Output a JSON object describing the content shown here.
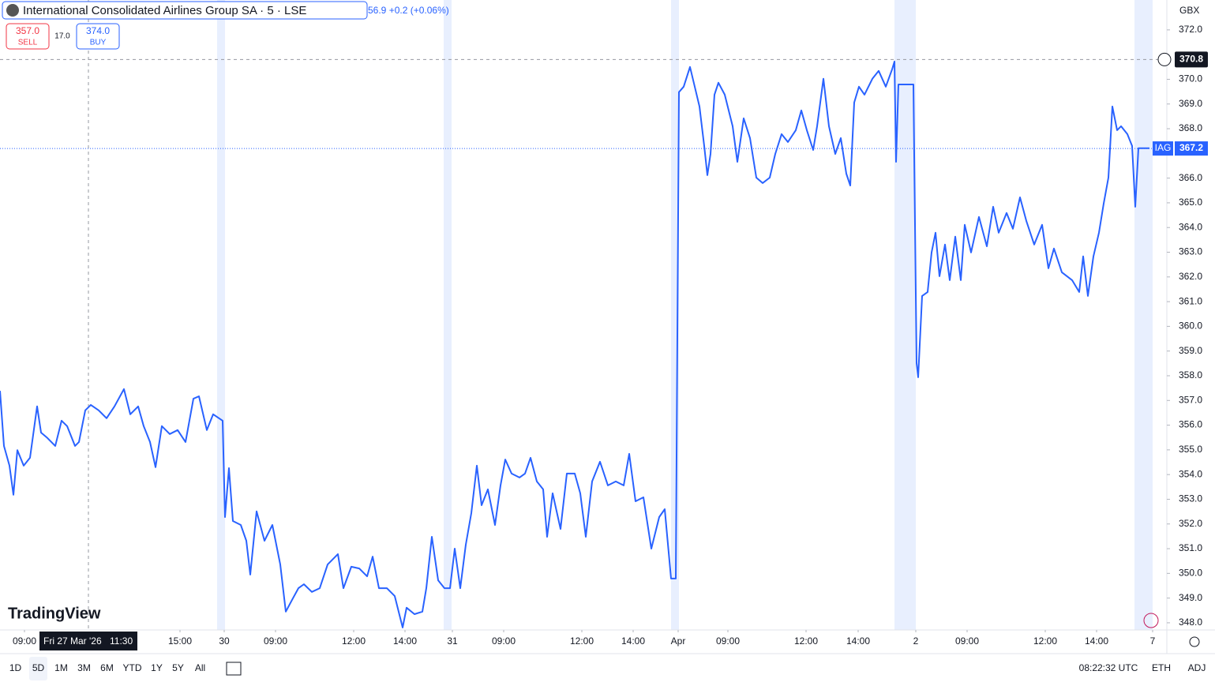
{
  "header": {
    "title": "International Consolidated Airlines Group SA · 5 · LSE",
    "quote": "56.9 +0.2 (+0.06%)",
    "sell_price": "357.0",
    "sell_label": "SELL",
    "spread": "17.0",
    "buy_price": "374.0",
    "buy_label": "BUY"
  },
  "currency": "GBX",
  "logo": "TradingView",
  "toolbar": {
    "ranges": [
      "1D",
      "5D",
      "1M",
      "3M",
      "6M",
      "YTD",
      "1Y",
      "5Y",
      "All"
    ],
    "active_range_index": 1,
    "clock": "08:22:32 UTC",
    "buttons": [
      "ETH",
      "ADJ"
    ]
  },
  "chart_data": {
    "type": "line",
    "x": [
      0,
      5,
      12,
      17,
      22,
      30,
      38,
      47,
      52,
      60,
      70,
      78,
      85,
      95,
      100,
      108,
      115,
      125,
      135,
      145,
      157,
      165,
      175,
      182,
      190,
      197,
      205,
      215,
      225,
      235,
      245,
      252,
      262,
      270,
      282,
      285,
      290,
      295,
      305,
      312,
      317,
      325,
      335,
      345,
      355,
      362,
      370,
      378,
      385,
      395,
      405,
      415,
      428,
      435,
      445,
      455,
      465,
      472,
      480,
      490,
      500,
      510,
      515,
      525,
      535,
      540,
      547,
      555,
      563,
      570,
      576,
      583,
      590,
      597,
      604,
      610,
      618,
      627,
      634,
      640,
      648,
      658,
      665,
      672,
      680,
      688,
      693,
      700,
      710,
      718,
      728,
      735,
      742,
      750,
      760,
      770,
      780,
      790,
      797,
      805,
      815,
      825,
      835,
      842,
      850,
      856,
      860,
      866,
      874,
      880,
      886,
      892,
      896,
      900,
      905,
      910,
      918,
      928,
      934,
      942,
      950,
      958,
      966,
      975,
      982,
      990,
      998,
      1008,
      1015,
      1022,
      1030,
      1035,
      1043,
      1050,
      1058,
      1065,
      1072,
      1077,
      1082,
      1088,
      1095,
      1105,
      1113,
      1122,
      1130,
      1133,
      1135,
      1138,
      1157,
      1161,
      1163,
      1168,
      1175,
      1180,
      1185,
      1190,
      1197,
      1203,
      1210,
      1217,
      1222,
      1230,
      1240,
      1250,
      1258,
      1265,
      1275,
      1283,
      1292,
      1300,
      1310,
      1320,
      1328,
      1335,
      1345,
      1358,
      1367,
      1372,
      1378,
      1385,
      1392,
      1398,
      1404,
      1409,
      1415,
      1420,
      1428,
      1434,
      1438,
      1442,
      1456
    ],
    "series": [
      {
        "name": "IAG",
        "color": "#2962ff",
        "values": [
          357.39,
          355.16,
          354.36,
          353.18,
          354.99,
          354.36,
          354.68,
          356.76,
          355.7,
          355.48,
          355.16,
          356.18,
          355.96,
          355.16,
          355.32,
          356.6,
          356.82,
          356.6,
          356.28,
          356.76,
          357.46,
          356.44,
          356.76,
          355.96,
          355.32,
          354.3,
          355.96,
          355.64,
          355.8,
          355.32,
          357.07,
          357.17,
          355.8,
          356.44,
          356.18,
          352.28,
          354.26,
          352.12,
          351.96,
          351.32,
          349.95,
          352.51,
          351.32,
          351.96,
          350.36,
          348.45,
          348.93,
          349.4,
          349.56,
          349.25,
          349.4,
          350.36,
          350.78,
          349.4,
          350.27,
          350.2,
          349.88,
          350.68,
          349.4,
          349.4,
          349.08,
          347.81,
          348.61,
          348.35,
          348.45,
          349.4,
          351.48,
          349.72,
          349.4,
          349.4,
          351.0,
          349.4,
          351.16,
          352.44,
          354.36,
          352.76,
          353.4,
          351.96,
          353.56,
          354.61,
          354.04,
          353.88,
          354.04,
          354.68,
          353.72,
          353.4,
          351.48,
          353.24,
          351.8,
          354.04,
          354.04,
          353.24,
          351.48,
          353.72,
          354.52,
          353.56,
          353.72,
          353.56,
          354.84,
          352.92,
          353.08,
          351.0,
          352.28,
          352.6,
          349.79,
          349.79,
          369.48,
          369.7,
          370.5,
          369.7,
          368.9,
          367.3,
          366.12,
          366.98,
          369.38,
          369.86,
          369.38,
          368.1,
          366.66,
          368.42,
          367.62,
          366.02,
          365.8,
          366.02,
          366.98,
          367.78,
          367.46,
          367.94,
          368.74,
          367.94,
          367.14,
          368.1,
          370.02,
          368.1,
          366.98,
          367.62,
          366.18,
          365.7,
          369.06,
          369.7,
          369.38,
          370.02,
          370.34,
          369.7,
          370.4,
          370.72,
          366.66,
          369.79,
          369.79,
          358.51,
          357.94,
          361.23,
          361.39,
          362.99,
          363.79,
          362.03,
          363.31,
          361.87,
          363.63,
          361.87,
          364.11,
          362.99,
          364.43,
          363.24,
          364.84,
          363.79,
          364.59,
          363.95,
          365.22,
          364.27,
          363.31,
          364.11,
          362.35,
          363.15,
          362.19,
          361.87,
          361.39,
          362.83,
          361.23,
          362.83,
          363.79,
          364.97,
          366.02,
          368.9,
          367.94,
          368.1,
          367.78,
          367.3,
          364.84,
          367.21,
          367.21
        ]
      }
    ],
    "xlim": [
      0,
      1478
    ],
    "ylim": [
      347.71,
      373.21
    ],
    "yticks": [
      {
        "value": 348,
        "label": "348.0"
      },
      {
        "value": 349,
        "label": "349.0"
      },
      {
        "value": 350,
        "label": "350.0"
      },
      {
        "value": 351,
        "label": "351.0"
      },
      {
        "value": 352,
        "label": "352.0"
      },
      {
        "value": 353,
        "label": "353.0"
      },
      {
        "value": 354,
        "label": "354.0"
      },
      {
        "value": 355,
        "label": "355.0"
      },
      {
        "value": 356,
        "label": "356.0"
      },
      {
        "value": 357,
        "label": "357.0"
      },
      {
        "value": 358,
        "label": "358.0"
      },
      {
        "value": 359,
        "label": "359.0"
      },
      {
        "value": 360,
        "label": "360.0"
      },
      {
        "value": 361,
        "label": "361.0"
      },
      {
        "value": 362,
        "label": "362.0"
      },
      {
        "value": 363,
        "label": "363.0"
      },
      {
        "value": 364,
        "label": "364.0"
      },
      {
        "value": 365,
        "label": "365.0"
      },
      {
        "value": 366,
        "label": "366.0"
      },
      {
        "value": 368,
        "label": "368.0"
      },
      {
        "value": 369,
        "label": "369.0"
      },
      {
        "value": 370,
        "label": "370.0"
      },
      {
        "value": 372,
        "label": "372.0"
      }
    ],
    "xticks": [
      {
        "value": 31,
        "label": "09:00"
      },
      {
        "value": 228,
        "label": "15:00"
      },
      {
        "value": 284,
        "label": "30"
      },
      {
        "value": 349,
        "label": "09:00"
      },
      {
        "value": 448,
        "label": "12:00"
      },
      {
        "value": 513,
        "label": "14:00"
      },
      {
        "value": 573,
        "label": "31"
      },
      {
        "value": 638,
        "label": "09:00"
      },
      {
        "value": 737,
        "label": "12:00"
      },
      {
        "value": 802,
        "label": "14:00"
      },
      {
        "value": 859,
        "label": "Apr"
      },
      {
        "value": 922,
        "label": "09:00"
      },
      {
        "value": 1021,
        "label": "12:00"
      },
      {
        "value": 1087,
        "label": "14:00"
      },
      {
        "value": 1160,
        "label": "2"
      },
      {
        "value": 1225,
        "label": "09:00"
      },
      {
        "value": 1324,
        "label": "12:00"
      },
      {
        "value": 1389,
        "label": "14:00"
      },
      {
        "value": 1460,
        "label": "7"
      }
    ],
    "crosshair": {
      "x": 112,
      "y": 370.8,
      "y_label": "370.8",
      "date_label": "Fri 27 Mar '26",
      "time_label": "11:30"
    },
    "last_price": {
      "value": 367.2,
      "label": "367.2"
    }
  }
}
